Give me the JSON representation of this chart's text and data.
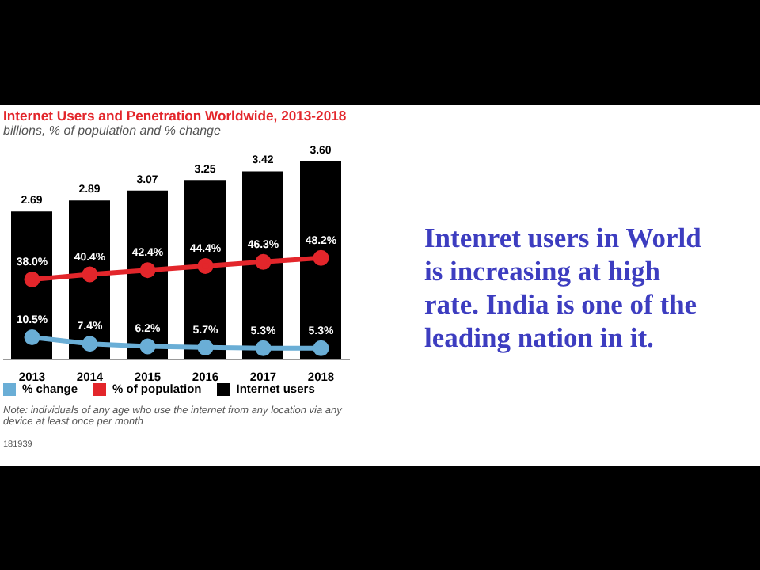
{
  "chart_data": {
    "type": "bar",
    "title": "Internet Users and Penetration Worldwide, 2013-2018",
    "subtitle": "billions, % of population and % change",
    "categories": [
      "2013",
      "2014",
      "2015",
      "2016",
      "2017",
      "2018"
    ],
    "series": [
      {
        "name": "Internet users",
        "color": "#000000",
        "values": [
          2.69,
          2.89,
          3.07,
          3.25,
          3.42,
          3.6
        ],
        "value_labels": [
          "2.69",
          "2.89",
          "3.07",
          "3.25",
          "3.42",
          "3.60"
        ]
      },
      {
        "name": "% of population",
        "type": "line",
        "axis": "y2",
        "color": "#e3262b",
        "values": [
          38.0,
          40.4,
          42.4,
          44.4,
          46.3,
          48.2
        ],
        "value_labels": [
          "38.0%",
          "40.4%",
          "42.4%",
          "44.4%",
          "46.3%",
          "48.2%"
        ]
      },
      {
        "name": "% change",
        "type": "line",
        "axis": "y2",
        "color": "#6aaed6",
        "values": [
          10.5,
          7.4,
          6.2,
          5.7,
          5.3,
          5.3
        ],
        "value_labels": [
          "10.5%",
          "7.4%",
          "6.2%",
          "5.7%",
          "5.3%",
          "5.3%"
        ]
      }
    ],
    "ylim": [
      0,
      3.6
    ],
    "y2lim": [
      0,
      94
    ],
    "tick_labels": "x",
    "legend": "bottom",
    "marker": "circle",
    "line_style": "solid",
    "annotations": [
      "Note: individuals of any age who use the internet from any location via any device at least once per month",
      "181939",
      "Intenret users in World is increasing at high rate. India is one of the leading nation in it."
    ]
  }
}
